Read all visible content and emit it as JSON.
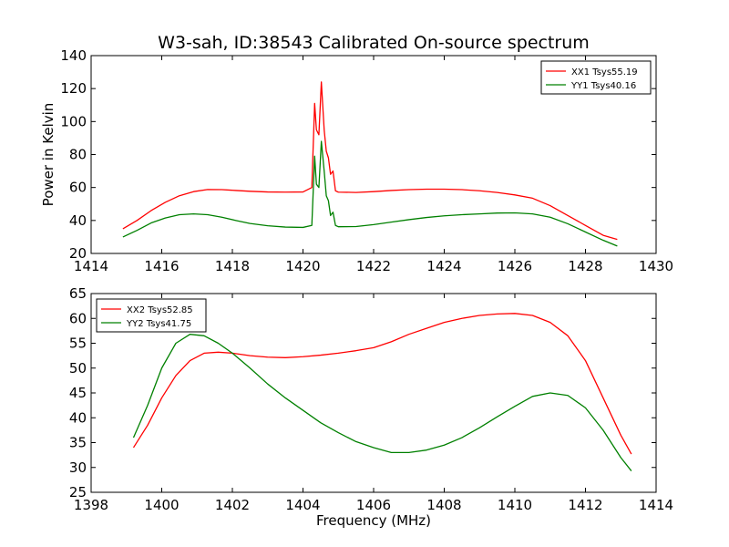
{
  "figure_title": "W3-sah, ID:38543 Calibrated On-source spectrum",
  "chart_data": [
    {
      "type": "line",
      "title": "W3-sah, ID:38543 Calibrated On-source spectrum",
      "xlabel": "",
      "ylabel": "Power in Kelvin",
      "xlim": [
        1414,
        1430
      ],
      "ylim": [
        20,
        140
      ],
      "xticks": [
        "1414",
        "1416",
        "1418",
        "1420",
        "1422",
        "1424",
        "1426",
        "1428",
        "1430"
      ],
      "yticks": [
        "20",
        "40",
        "60",
        "80",
        "100",
        "120",
        "140"
      ],
      "grid": false,
      "legend_position": "top-right",
      "series": [
        {
          "name": "XX1 Tsys55.19",
          "color": "#ff0000",
          "x": [
            1414.9,
            1415.3,
            1415.7,
            1416.1,
            1416.5,
            1416.9,
            1417.3,
            1417.7,
            1418.1,
            1418.5,
            1419.0,
            1419.5,
            1420.0,
            1420.25,
            1420.33,
            1420.38,
            1420.45,
            1420.52,
            1420.6,
            1420.66,
            1420.72,
            1420.78,
            1420.85,
            1420.92,
            1421.0,
            1421.5,
            1422.0,
            1422.5,
            1423.0,
            1423.5,
            1424.0,
            1424.5,
            1425.0,
            1425.5,
            1426.0,
            1426.5,
            1427.0,
            1427.5,
            1428.0,
            1428.5,
            1428.9
          ],
          "y": [
            35,
            40,
            46,
            51,
            55,
            57.5,
            58.8,
            58.7,
            58.2,
            57.7,
            57.3,
            57.2,
            57.3,
            60,
            111,
            95,
            92,
            124,
            95,
            82,
            78,
            68,
            70,
            58,
            57.2,
            57,
            57.5,
            58.2,
            58.7,
            59,
            59,
            58.7,
            58,
            57,
            55.5,
            53.5,
            49,
            43,
            37,
            31,
            28.5
          ]
        },
        {
          "name": "YY1 Tsys40.16",
          "color": "#008000",
          "x": [
            1414.9,
            1415.3,
            1415.7,
            1416.1,
            1416.5,
            1416.9,
            1417.3,
            1417.7,
            1418.1,
            1418.5,
            1419.0,
            1419.5,
            1420.0,
            1420.25,
            1420.33,
            1420.38,
            1420.45,
            1420.52,
            1420.6,
            1420.66,
            1420.72,
            1420.78,
            1420.85,
            1420.92,
            1421.0,
            1421.5,
            1422.0,
            1422.5,
            1423.0,
            1423.5,
            1424.0,
            1424.5,
            1425.0,
            1425.5,
            1426.0,
            1426.5,
            1427.0,
            1427.5,
            1428.0,
            1428.5,
            1428.9
          ],
          "y": [
            30,
            34,
            38.5,
            41.5,
            43.5,
            44,
            43.5,
            42,
            40,
            38.2,
            36.8,
            36,
            35.8,
            37,
            79,
            62,
            60,
            88,
            70,
            55,
            52,
            43,
            45,
            37,
            36.2,
            36.3,
            37.5,
            39,
            40.5,
            41.8,
            42.8,
            43.5,
            44,
            44.5,
            44.6,
            44,
            42,
            38,
            33,
            28,
            24.5
          ]
        }
      ]
    },
    {
      "type": "line",
      "title": "",
      "xlabel": "Frequency (MHz)",
      "ylabel": "",
      "xlim": [
        1398,
        1414
      ],
      "ylim": [
        25,
        65
      ],
      "xticks": [
        "1398",
        "1400",
        "1402",
        "1404",
        "1406",
        "1408",
        "1410",
        "1412",
        "1414"
      ],
      "yticks": [
        "25",
        "30",
        "35",
        "40",
        "45",
        "50",
        "55",
        "60",
        "65"
      ],
      "grid": false,
      "legend_position": "top-left",
      "series": [
        {
          "name": "XX2 Tsys52.85",
          "color": "#ff0000",
          "x": [
            1399.2,
            1399.6,
            1400.0,
            1400.4,
            1400.8,
            1401.2,
            1401.6,
            1402.0,
            1402.5,
            1403.0,
            1403.5,
            1404.0,
            1404.5,
            1405.0,
            1405.5,
            1406.0,
            1406.5,
            1407.0,
            1407.5,
            1408.0,
            1408.5,
            1409.0,
            1409.5,
            1410.0,
            1410.5,
            1411.0,
            1411.5,
            1412.0,
            1412.5,
            1413.0,
            1413.3
          ],
          "y": [
            34,
            38.5,
            44,
            48.5,
            51.5,
            53,
            53.2,
            53,
            52.5,
            52.2,
            52.1,
            52.3,
            52.6,
            53,
            53.5,
            54.1,
            55.3,
            56.8,
            58,
            59.2,
            60,
            60.6,
            60.9,
            61,
            60.6,
            59.2,
            56.5,
            51.5,
            44,
            36.5,
            32.7
          ]
        },
        {
          "name": "YY2 Tsys41.75",
          "color": "#008000",
          "x": [
            1399.2,
            1399.6,
            1400.0,
            1400.4,
            1400.8,
            1401.2,
            1401.6,
            1402.0,
            1402.5,
            1403.0,
            1403.5,
            1404.0,
            1404.5,
            1405.0,
            1405.5,
            1406.0,
            1406.5,
            1407.0,
            1407.5,
            1408.0,
            1408.5,
            1409.0,
            1409.5,
            1410.0,
            1410.5,
            1411.0,
            1411.5,
            1412.0,
            1412.5,
            1413.0,
            1413.3
          ],
          "y": [
            36,
            42.5,
            50,
            55,
            56.8,
            56.5,
            55,
            53,
            50,
            46.8,
            44,
            41.5,
            39,
            37,
            35.2,
            34,
            33,
            33,
            33.5,
            34.5,
            36,
            38,
            40.2,
            42.3,
            44.3,
            45,
            44.5,
            42,
            37.5,
            32,
            29.3
          ]
        }
      ]
    }
  ]
}
